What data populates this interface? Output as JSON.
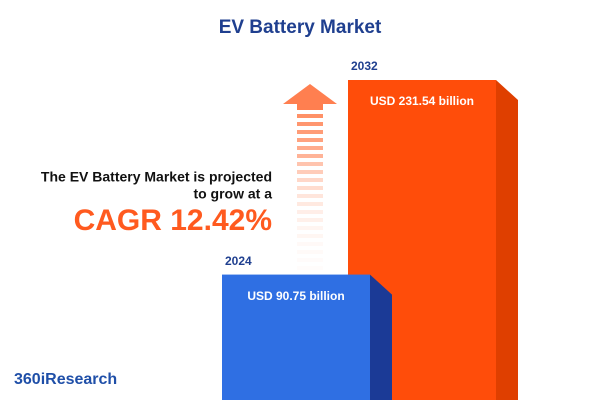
{
  "chart_data": {
    "type": "bar",
    "title": "EV Battery Market",
    "categories": [
      "2024",
      "2032"
    ],
    "values": [
      90.75,
      231.54
    ],
    "value_labels": [
      "USD 90.75 billion",
      "USD 231.54 billion"
    ],
    "colors": [
      "#2f6fe3",
      "#ff4d0a"
    ],
    "side_colors": [
      "#1b3a96",
      "#df3f00"
    ],
    "annotations": [
      "The EV Battery Market is projected",
      "to grow at a",
      "CAGR 12.42%"
    ],
    "brand": "360iResearch"
  }
}
